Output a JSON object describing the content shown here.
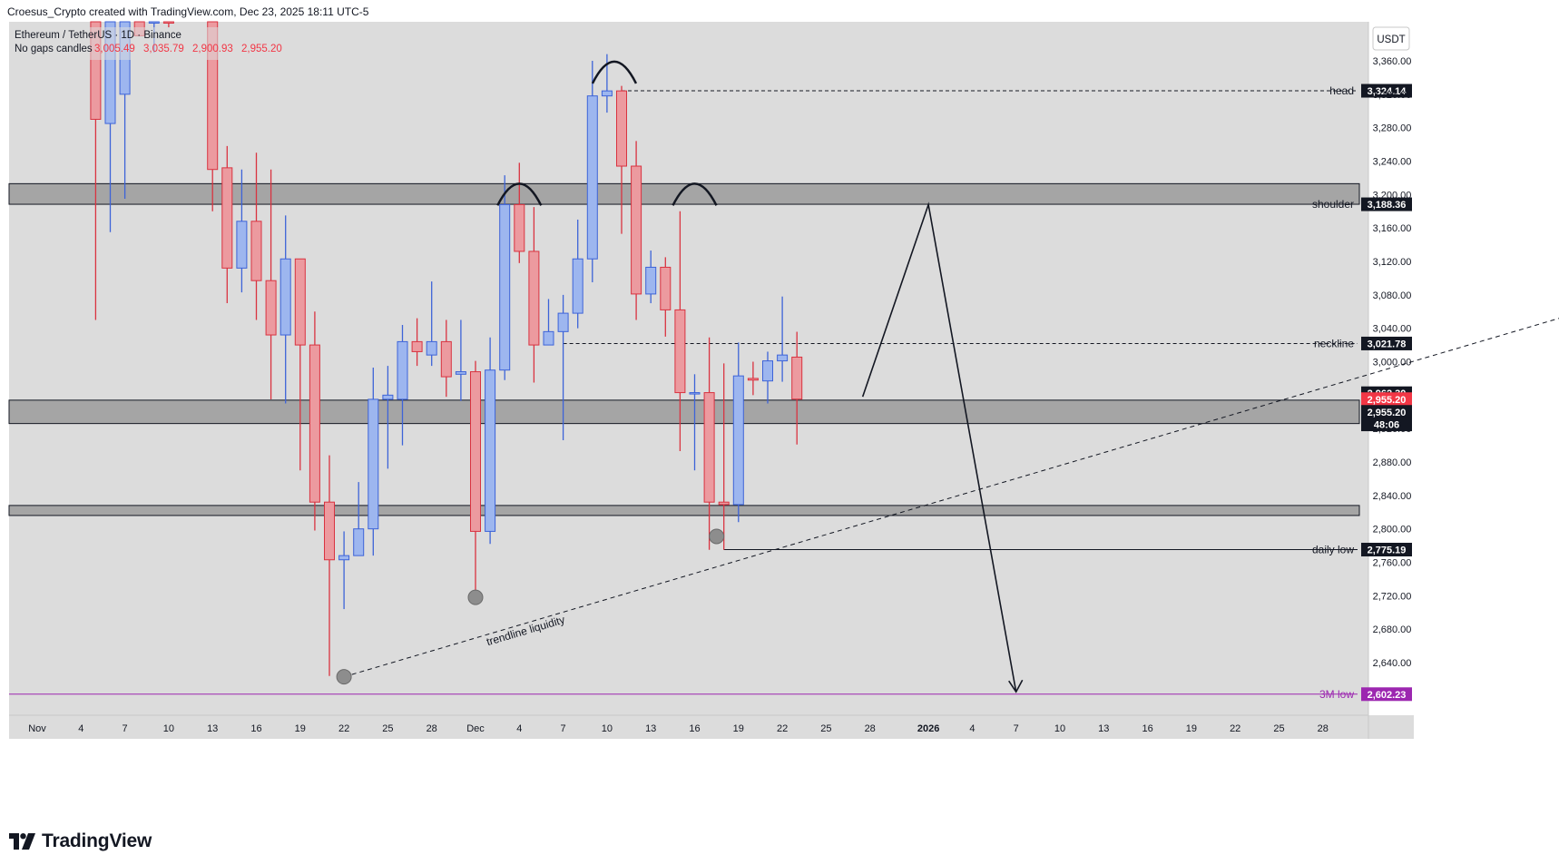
{
  "header": {
    "attribution": "Croesus_Crypto created with TradingView.com, Dec 23, 2025 18:11 UTC-5"
  },
  "legend": {
    "symbol": "Ethereum / TetherUS · 1D · Binance",
    "mode": "No gaps candles",
    "ohlc": [
      "3,005.49",
      "3,035.79",
      "2,900.93",
      "2,955.20"
    ]
  },
  "currency": "USDT",
  "colors": {
    "up": "#9db6ef",
    "up_border": "#3d63d8",
    "down": "#ec9a9f",
    "down_border": "#d93340",
    "zone": "#9e9e9e",
    "background": "#dcdcdc",
    "axis_bg": "#ffffff",
    "purple": "#9c27b0"
  },
  "footer": {
    "logo_text": "TradingView"
  },
  "chart_data": {
    "type": "candlestick",
    "ylim": [
      2560,
      3400
    ],
    "y_ticks": [
      "3,360.00",
      "3,320.00",
      "3,280.00",
      "3,240.00",
      "3,200.00",
      "3,160.00",
      "3,120.00",
      "3,080.00",
      "3,040.00",
      "3,000.00",
      "2,960.00",
      "2,920.00",
      "2,880.00",
      "2,840.00",
      "2,800.00",
      "2,760.00",
      "2,720.00",
      "2,680.00",
      "2,640.00"
    ],
    "x_ticks": [
      {
        "label": "Nov",
        "day": 0
      },
      {
        "label": "4",
        "day": 3
      },
      {
        "label": "7",
        "day": 6
      },
      {
        "label": "10",
        "day": 9
      },
      {
        "label": "13",
        "day": 12
      },
      {
        "label": "16",
        "day": 15
      },
      {
        "label": "19",
        "day": 18
      },
      {
        "label": "22",
        "day": 21
      },
      {
        "label": "25",
        "day": 24
      },
      {
        "label": "28",
        "day": 27
      },
      {
        "label": "Dec",
        "day": 30
      },
      {
        "label": "4",
        "day": 33
      },
      {
        "label": "7",
        "day": 36
      },
      {
        "label": "10",
        "day": 39
      },
      {
        "label": "13",
        "day": 42
      },
      {
        "label": "16",
        "day": 45
      },
      {
        "label": "19",
        "day": 48
      },
      {
        "label": "22",
        "day": 51
      },
      {
        "label": "25",
        "day": 54
      },
      {
        "label": "28",
        "day": 57
      },
      {
        "label": "2026",
        "day": 61,
        "bold": true
      },
      {
        "label": "4",
        "day": 64
      },
      {
        "label": "7",
        "day": 67
      },
      {
        "label": "10",
        "day": 70
      },
      {
        "label": "13",
        "day": 73
      },
      {
        "label": "16",
        "day": 76
      },
      {
        "label": "19",
        "day": 79
      },
      {
        "label": "22",
        "day": 82
      },
      {
        "label": "25",
        "day": 85
      },
      {
        "label": "28",
        "day": 88
      }
    ],
    "candles": [
      {
        "day": 5,
        "o": 3285,
        "h": 3500,
        "l": 3155,
        "c": 3470
      },
      {
        "day": 4,
        "o": 3480,
        "h": 3510,
        "l": 3050,
        "c": 3290
      },
      {
        "day": 6,
        "o": 3320,
        "h": 3500,
        "l": 3195,
        "c": 3470
      },
      {
        "day": 7,
        "o": 3480,
        "h": 3510,
        "l": 3390,
        "c": 3390
      },
      {
        "day": 8,
        "o": 3480,
        "h": 3520,
        "l": 3370,
        "c": 3500
      },
      {
        "day": 9,
        "o": 3500,
        "h": 3520,
        "l": 3400,
        "c": 3470
      },
      {
        "day": 12,
        "o": 3450,
        "h": 3500,
        "l": 3180,
        "c": 3230
      },
      {
        "day": 13,
        "o": 3232,
        "h": 3258,
        "l": 3070,
        "c": 3112
      },
      {
        "day": 14,
        "o": 3112,
        "h": 3230,
        "l": 3083,
        "c": 3168
      },
      {
        "day": 15,
        "o": 3168,
        "h": 3250,
        "l": 3050,
        "c": 3097
      },
      {
        "day": 16,
        "o": 3097,
        "h": 3230,
        "l": 2955,
        "c": 3032
      },
      {
        "day": 17,
        "o": 3032,
        "h": 3175,
        "l": 2950,
        "c": 3123
      },
      {
        "day": 18,
        "o": 3123,
        "h": 3123,
        "l": 2870,
        "c": 3020
      },
      {
        "day": 19,
        "o": 3020,
        "h": 3060,
        "l": 2798,
        "c": 2832
      },
      {
        "day": 20,
        "o": 2832,
        "h": 2888,
        "l": 2624,
        "c": 2763
      },
      {
        "day": 21,
        "o": 2763,
        "h": 2797,
        "l": 2704,
        "c": 2768
      },
      {
        "day": 22,
        "o": 2768,
        "h": 2856,
        "l": 2770,
        "c": 2800
      },
      {
        "day": 23,
        "o": 2800,
        "h": 2993,
        "l": 2768,
        "c": 2955
      },
      {
        "day": 24,
        "o": 2955,
        "h": 2995,
        "l": 2872,
        "c": 2960
      },
      {
        "day": 25,
        "o": 2955,
        "h": 3044,
        "l": 2900,
        "c": 3024
      },
      {
        "day": 26,
        "o": 3024,
        "h": 3052,
        "l": 2995,
        "c": 3012
      },
      {
        "day": 27,
        "o": 3008,
        "h": 3096,
        "l": 2995,
        "c": 3024
      },
      {
        "day": 28,
        "o": 3024,
        "h": 3050,
        "l": 2958,
        "c": 2982
      },
      {
        "day": 29,
        "o": 2985,
        "h": 3050,
        "l": 2953,
        "c": 2988
      },
      {
        "day": 30,
        "o": 2988,
        "h": 3001,
        "l": 2718,
        "c": 2797
      },
      {
        "day": 31,
        "o": 2797,
        "h": 3029,
        "l": 2782,
        "c": 2990
      },
      {
        "day": 32,
        "o": 2990,
        "h": 3223,
        "l": 2978,
        "c": 3188
      },
      {
        "day": 33,
        "o": 3188,
        "h": 3238,
        "l": 3118,
        "c": 3132
      },
      {
        "day": 34,
        "o": 3132,
        "h": 3185,
        "l": 2975,
        "c": 3020
      },
      {
        "day": 35,
        "o": 3020,
        "h": 3075,
        "l": 3020,
        "c": 3036
      },
      {
        "day": 36,
        "o": 3036,
        "h": 3080,
        "l": 2906,
        "c": 3058
      },
      {
        "day": 37,
        "o": 3058,
        "h": 3170,
        "l": 3040,
        "c": 3123
      },
      {
        "day": 38,
        "o": 3123,
        "h": 3360,
        "l": 3095,
        "c": 3318
      },
      {
        "day": 39,
        "o": 3318,
        "h": 3368,
        "l": 3298,
        "c": 3324
      },
      {
        "day": 40,
        "o": 3324,
        "h": 3330,
        "l": 3153,
        "c": 3234
      },
      {
        "day": 41,
        "o": 3234,
        "h": 3264,
        "l": 3050,
        "c": 3081
      },
      {
        "day": 42,
        "o": 3081,
        "h": 3133,
        "l": 3070,
        "c": 3113
      },
      {
        "day": 43,
        "o": 3113,
        "h": 3125,
        "l": 3030,
        "c": 3062
      },
      {
        "day": 44,
        "o": 3062,
        "h": 3180,
        "l": 2893,
        "c": 2963
      },
      {
        "day": 45,
        "o": 2963,
        "h": 2985,
        "l": 2870,
        "c": 2963
      },
      {
        "day": 46,
        "o": 2963,
        "h": 3029,
        "l": 2775,
        "c": 2832
      },
      {
        "day": 47,
        "o": 2832,
        "h": 2998,
        "l": 2775,
        "c": 2829
      },
      {
        "day": 48,
        "o": 2829,
        "h": 3023,
        "l": 2808,
        "c": 2983
      },
      {
        "day": 49,
        "o": 2980,
        "h": 3000,
        "l": 2960,
        "c": 2978
      },
      {
        "day": 50,
        "o": 2977,
        "h": 3012,
        "l": 2950,
        "c": 3001
      },
      {
        "day": 51,
        "o": 3001,
        "h": 3078,
        "l": 2976,
        "c": 3008
      },
      {
        "day": 52,
        "o": 3005.49,
        "h": 3035.79,
        "l": 2900.93,
        "c": 2955.2
      }
    ],
    "zones": [
      {
        "from": 3188.36,
        "to": 3213
      },
      {
        "from": 2926,
        "to": 2954
      },
      {
        "from": 2816,
        "to": 2828
      }
    ],
    "levels": [
      {
        "label": "head",
        "price": 3324.14,
        "price_label": "3,324.14",
        "style": "dashed",
        "from_day": 40
      },
      {
        "label": "shoulder",
        "price": 3188.36,
        "price_label": "3,188.36",
        "style": "zone-edge",
        "from_day": 0
      },
      {
        "label": "neckline",
        "price": 3021.78,
        "price_label": "3,021.78",
        "style": "dashed",
        "from_day": 36
      },
      {
        "label": "daily low",
        "price": 2775.19,
        "price_label": "2,775.19",
        "style": "solid",
        "from_day": 47
      },
      {
        "label": "3M low",
        "price": 2602.23,
        "price_label": "2,602.23",
        "style": "purple",
        "from_day": 0
      }
    ],
    "price_badges": [
      {
        "price": 2962.3,
        "text": "2,962.30",
        "bg": "#131722",
        "fg": "#ffffff"
      },
      {
        "price": 2955.2,
        "text": "2,955.20",
        "bg": "#f23645",
        "fg": "#ffffff"
      },
      {
        "price": 2940,
        "text": "2,955.20",
        "bg": "#131722",
        "fg": "#ffffff"
      },
      {
        "price": 2925,
        "text": "48:06",
        "bg": "#131722",
        "fg": "#ffffff"
      }
    ],
    "trendline": {
      "from": {
        "day": 21,
        "price": 2623
      },
      "to": {
        "day": 110,
        "price": 3082
      },
      "label": "trendline liquidity"
    },
    "liquidity_dots": [
      {
        "day": 21,
        "price": 2623
      },
      {
        "day": 30,
        "price": 2718
      },
      {
        "day": 46.5,
        "price": 2791
      }
    ],
    "pattern_arcs": [
      {
        "day": 33,
        "price": 3200
      },
      {
        "day": 39.5,
        "price": 3346
      },
      {
        "day": 45,
        "price": 3200
      }
    ],
    "projection": [
      {
        "day": 56.5,
        "price": 2958
      },
      {
        "day": 61,
        "price": 3188
      },
      {
        "day": 67,
        "price": 2605
      }
    ]
  }
}
